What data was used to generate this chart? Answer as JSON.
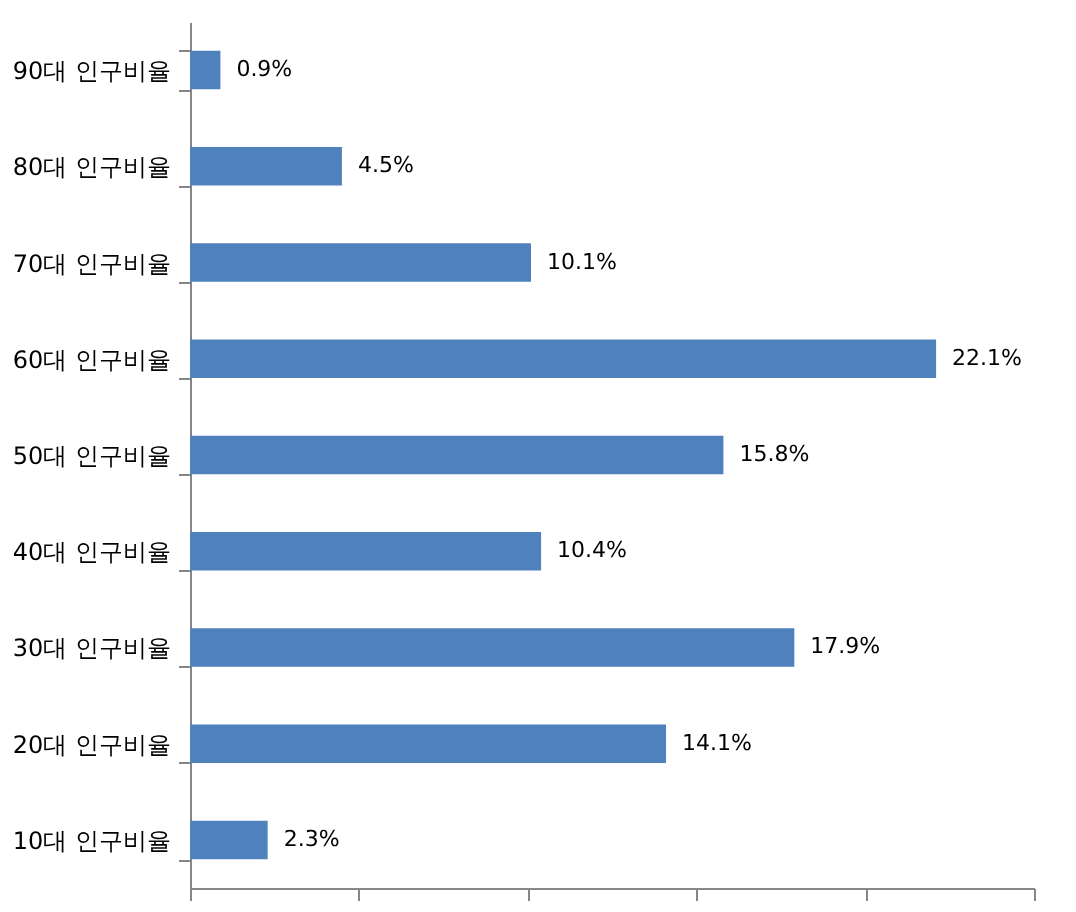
{
  "chart_data": {
    "type": "bar",
    "orientation": "horizontal",
    "categories": [
      "90대 인구비율",
      "80대 인구비율",
      "70대 인구비율",
      "60대 인구비율",
      "50대 인구비율",
      "40대 인구비율",
      "30대 인구비율",
      "20대 인구비율",
      "10대 인구비율"
    ],
    "values": [
      0.9,
      4.5,
      10.1,
      22.1,
      15.8,
      10.4,
      17.9,
      14.1,
      2.3
    ],
    "value_labels": [
      "0.9%",
      "4.5%",
      "10.1%",
      "22.1%",
      "15.8%",
      "10.4%",
      "17.9%",
      "14.1%",
      "2.3%"
    ],
    "color": "#4f81bd",
    "xlim": [
      0,
      25
    ],
    "xticks": [
      {
        "value": 0,
        "label": null
      },
      {
        "value": 5,
        "label": null
      },
      {
        "value": 10,
        "label": null
      },
      {
        "value": 15,
        "label": null
      },
      {
        "value": 20,
        "label": null
      },
      {
        "value": 25,
        "label": null
      }
    ],
    "tick_labels": "y",
    "grid": false
  }
}
